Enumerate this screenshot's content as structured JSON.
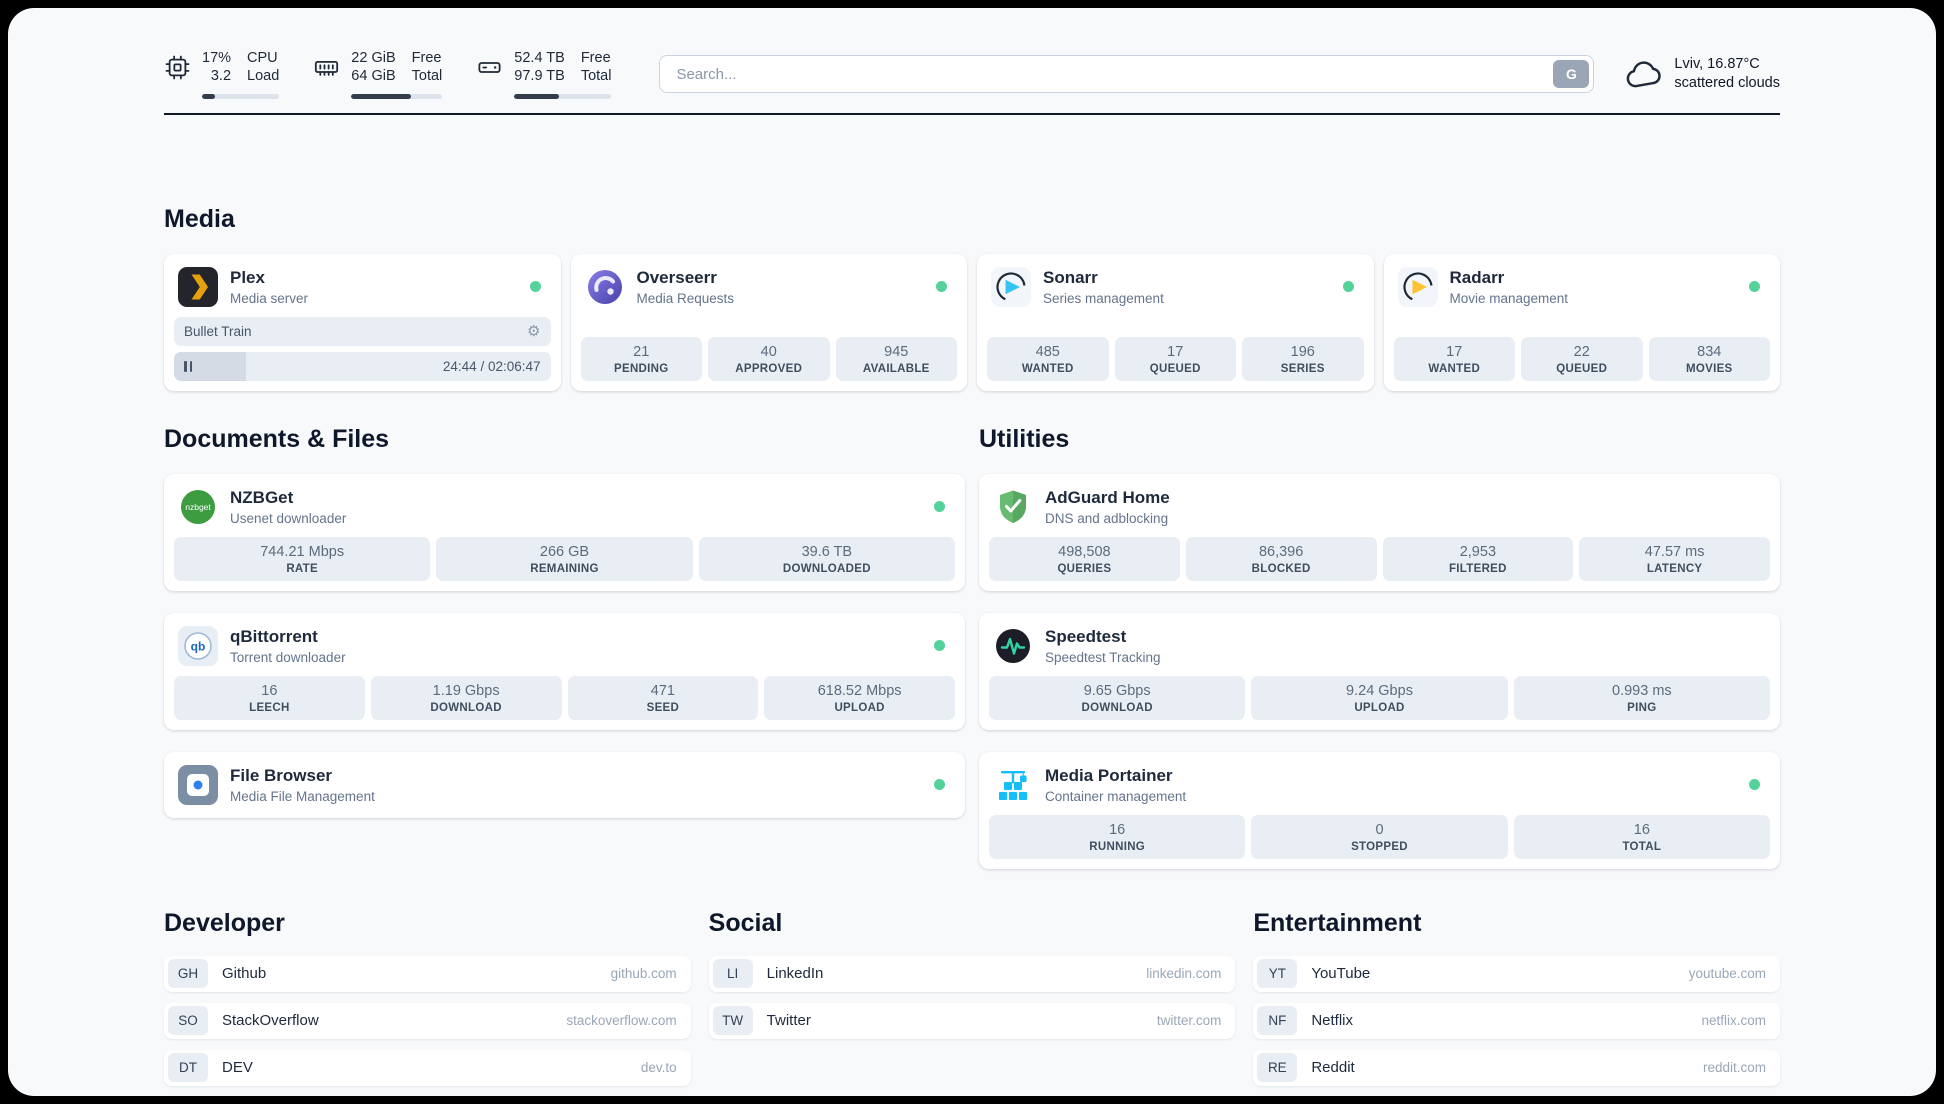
{
  "colors": {
    "page_background": "#f7f9fb",
    "card_background": "#ffffff",
    "chip_background": "#e9eef4",
    "status_online_green": "#55d29a",
    "header_bar_fill": "#333c4a",
    "plex_gold": "#e5a00d",
    "overseerr_purple": "#5a4fb5",
    "sonarr_blue": "#35c5f4",
    "radarr_yellow": "#ffc230",
    "nzbget_green": "#3d9c40",
    "qbittorrent_blue": "#1567c2",
    "adguard_green": "#68bc71",
    "speedtest_green": "#2dd4a7",
    "portainer_blue": "#13bef9"
  },
  "header": {
    "cpu": {
      "value1": "17%",
      "label1": "CPU",
      "value2": "3.2",
      "label2": "Load",
      "bar_percent": 17
    },
    "memory": {
      "value1": "22 GiB",
      "label1": "Free",
      "value2": "64 GiB",
      "label2": "Total",
      "bar_percent": 66
    },
    "disk": {
      "value1": "52.4 TB",
      "label1": "Free",
      "value2": "97.9 TB",
      "label2": "Total",
      "bar_percent": 46
    },
    "search": {
      "placeholder": "Search...",
      "button_label": "G"
    },
    "weather": {
      "location": "Lviv, 16.87°C",
      "condition": "scattered clouds"
    }
  },
  "media": {
    "title": "Media",
    "plex": {
      "name": "Plex",
      "desc": "Media server",
      "now_playing": "Bullet Train",
      "time": "24:44 / 02:06:47",
      "progress_percent": 19
    },
    "overseerr": {
      "name": "Overseerr",
      "desc": "Media Requests",
      "stats": [
        {
          "value": "21",
          "label": "PENDING"
        },
        {
          "value": "40",
          "label": "APPROVED"
        },
        {
          "value": "945",
          "label": "AVAILABLE"
        }
      ]
    },
    "sonarr": {
      "name": "Sonarr",
      "desc": "Series management",
      "stats": [
        {
          "value": "485",
          "label": "WANTED"
        },
        {
          "value": "17",
          "label": "QUEUED"
        },
        {
          "value": "196",
          "label": "SERIES"
        }
      ]
    },
    "radarr": {
      "name": "Radarr",
      "desc": "Movie management",
      "stats": [
        {
          "value": "17",
          "label": "WANTED"
        },
        {
          "value": "22",
          "label": "QUEUED"
        },
        {
          "value": "834",
          "label": "MOVIES"
        }
      ]
    }
  },
  "documents": {
    "title": "Documents & Files",
    "nzbget": {
      "name": "NZBGet",
      "desc": "Usenet downloader",
      "stats": [
        {
          "value": "744.21 Mbps",
          "label": "RATE"
        },
        {
          "value": "266 GB",
          "label": "REMAINING"
        },
        {
          "value": "39.6 TB",
          "label": "DOWNLOADED"
        }
      ]
    },
    "qbittorrent": {
      "name": "qBittorrent",
      "desc": "Torrent downloader",
      "stats": [
        {
          "value": "16",
          "label": "LEECH"
        },
        {
          "value": "1.19 Gbps",
          "label": "DOWNLOAD"
        },
        {
          "value": "471",
          "label": "SEED"
        },
        {
          "value": "618.52 Mbps",
          "label": "UPLOAD"
        }
      ]
    },
    "filebrowser": {
      "name": "File Browser",
      "desc": "Media File Management"
    }
  },
  "utilities": {
    "title": "Utilities",
    "adguard": {
      "name": "AdGuard Home",
      "desc": "DNS and adblocking",
      "stats": [
        {
          "value": "498,508",
          "label": "QUERIES"
        },
        {
          "value": "86,396",
          "label": "BLOCKED"
        },
        {
          "value": "2,953",
          "label": "FILTERED"
        },
        {
          "value": "47.57 ms",
          "label": "LATENCY"
        }
      ]
    },
    "speedtest": {
      "name": "Speedtest",
      "desc": "Speedtest Tracking",
      "stats": [
        {
          "value": "9.65 Gbps",
          "label": "DOWNLOAD"
        },
        {
          "value": "9.24 Gbps",
          "label": "UPLOAD"
        },
        {
          "value": "0.993 ms",
          "label": "PING"
        }
      ]
    },
    "portainer": {
      "name": "Media Portainer",
      "desc": "Container management",
      "stats": [
        {
          "value": "16",
          "label": "RUNNING"
        },
        {
          "value": "0",
          "label": "STOPPED"
        },
        {
          "value": "16",
          "label": "TOTAL"
        }
      ]
    }
  },
  "bookmarks": {
    "developer": {
      "title": "Developer",
      "items": [
        {
          "abbr": "GH",
          "name": "Github",
          "domain": "github.com"
        },
        {
          "abbr": "SO",
          "name": "StackOverflow",
          "domain": "stackoverflow.com"
        },
        {
          "abbr": "DT",
          "name": "DEV",
          "domain": "dev.to"
        }
      ]
    },
    "social": {
      "title": "Social",
      "items": [
        {
          "abbr": "LI",
          "name": "LinkedIn",
          "domain": "linkedin.com"
        },
        {
          "abbr": "TW",
          "name": "Twitter",
          "domain": "twitter.com"
        }
      ]
    },
    "entertainment": {
      "title": "Entertainment",
      "items": [
        {
          "abbr": "YT",
          "name": "YouTube",
          "domain": "youtube.com"
        },
        {
          "abbr": "NF",
          "name": "Netflix",
          "domain": "netflix.com"
        },
        {
          "abbr": "RE",
          "name": "Reddit",
          "domain": "reddit.com"
        }
      ]
    }
  },
  "icons": {
    "nzbget_label": "nzbget",
    "qbittorrent_label": "qb"
  }
}
